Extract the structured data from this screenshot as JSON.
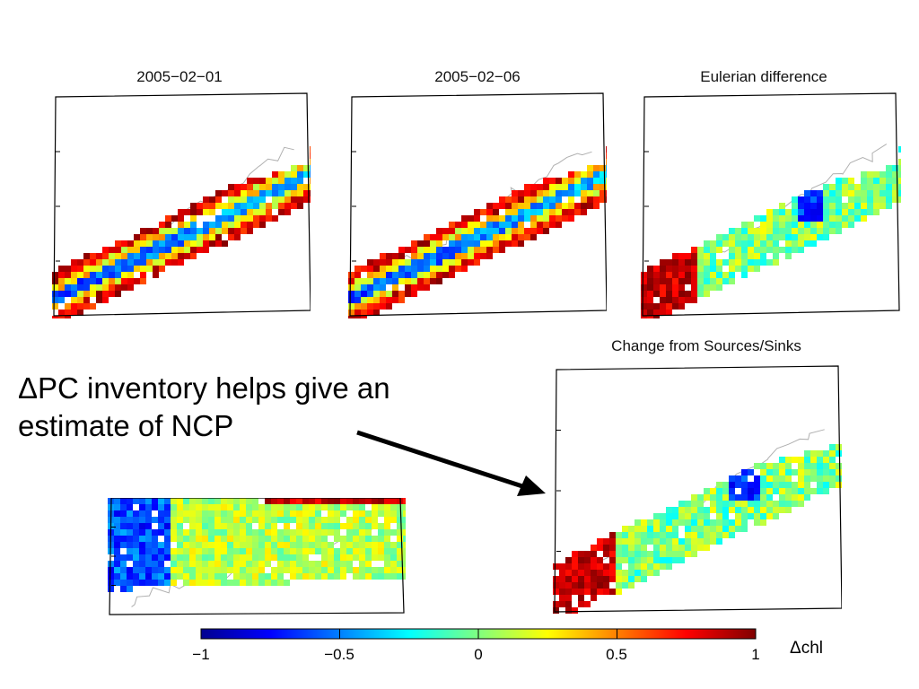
{
  "panels": [
    {
      "title": "2005−02−01",
      "style": "cold-interior"
    },
    {
      "title": "2005−02−06",
      "style": "cold-interior-swath"
    },
    {
      "title": "Eulerian difference",
      "style": "mixed"
    },
    {
      "title": "",
      "style": "partial"
    },
    {
      "title": "Change from Sources/Sinks",
      "style": "mixed"
    }
  ],
  "annotation": {
    "line1": "ΔPC inventory helps give an",
    "line2": "estimate of NCP"
  },
  "colorbar": {
    "unit": "Δchl",
    "ticks": [
      "−1",
      "−0.5",
      "0",
      "0.5",
      "1"
    ],
    "range": [
      -1,
      1
    ],
    "colormap": [
      "#00008f",
      "#0000ff",
      "#00ffff",
      "#ffff00",
      "#ff0000",
      "#800000"
    ]
  }
}
